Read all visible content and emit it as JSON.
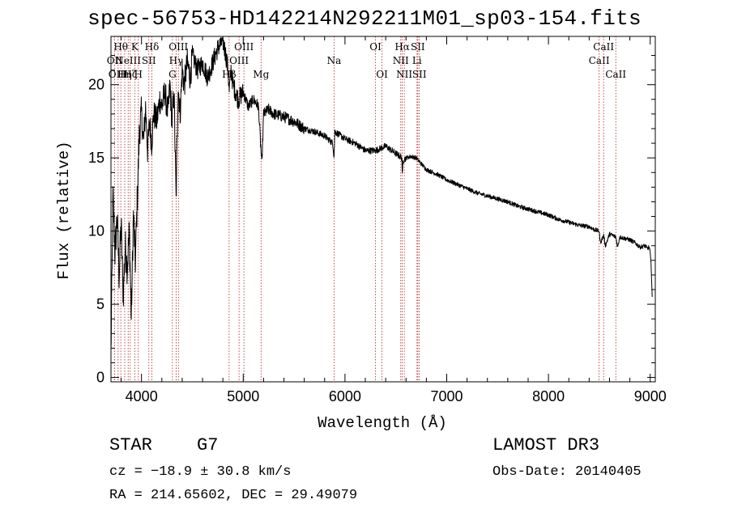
{
  "chart_data": {
    "type": "line",
    "title": "spec-56753-HD142214N292211M01_sp03-154.fits",
    "xlabel": "Wavelength (Å)",
    "ylabel": "Flux (relative)",
    "xlim": [
      3700,
      9050
    ],
    "ylim": [
      -0.3,
      23.3
    ],
    "xticks": [
      4000,
      5000,
      6000,
      7000,
      8000,
      9000
    ],
    "yticks": [
      0,
      5,
      10,
      15,
      20
    ],
    "grid": false,
    "series": [
      {
        "name": "flux",
        "x": [
          3700,
          3720,
          3740,
          3760,
          3780,
          3800,
          3820,
          3840,
          3860,
          3880,
          3900,
          3920,
          3940,
          3960,
          3980,
          4000,
          4020,
          4040,
          4060,
          4080,
          4100,
          4120,
          4150,
          4180,
          4200,
          4230,
          4260,
          4280,
          4300,
          4320,
          4340,
          4360,
          4380,
          4400,
          4420,
          4450,
          4480,
          4500,
          4550,
          4600,
          4650,
          4700,
          4750,
          4800,
          4830,
          4850,
          4862,
          4880,
          4900,
          4950,
          5000,
          5050,
          5100,
          5150,
          5170,
          5183,
          5200,
          5250,
          5300,
          5400,
          5500,
          5600,
          5700,
          5800,
          5880,
          5893,
          5900,
          6000,
          6100,
          6200,
          6300,
          6400,
          6500,
          6560,
          6563,
          6570,
          6600,
          6650,
          6700,
          6750,
          6800,
          6900,
          7000,
          7100,
          7200,
          7300,
          7400,
          7500,
          7600,
          7700,
          7800,
          7900,
          8000,
          8100,
          8200,
          8300,
          8400,
          8450,
          8498,
          8510,
          8542,
          8560,
          8600,
          8662,
          8680,
          8700,
          8800,
          8850,
          8900,
          8950,
          8970,
          8990,
          9000,
          9010,
          9020
        ],
        "values": [
          1.5,
          12.5,
          8.5,
          11.0,
          7.0,
          10.5,
          5.5,
          9.0,
          7.5,
          10.0,
          4.0,
          11.0,
          8.0,
          12.5,
          17.0,
          18.0,
          16.0,
          18.5,
          15.5,
          17.5,
          16.0,
          18.0,
          17.5,
          19.0,
          18.5,
          19.5,
          18.0,
          20.0,
          17.5,
          19.5,
          12.0,
          20.0,
          18.0,
          21.0,
          20.0,
          21.5,
          20.5,
          22.0,
          21.0,
          21.5,
          20.5,
          21.5,
          22.5,
          23.0,
          22.0,
          21.0,
          19.5,
          21.0,
          20.0,
          19.0,
          19.5,
          18.5,
          19.0,
          18.5,
          16.0,
          14.5,
          18.0,
          18.3,
          18.0,
          17.8,
          17.5,
          17.0,
          16.8,
          16.5,
          16.0,
          15.0,
          16.8,
          16.3,
          16.0,
          15.5,
          15.5,
          15.8,
          15.3,
          15.0,
          13.5,
          14.8,
          15.0,
          15.1,
          15.0,
          14.6,
          14.2,
          13.9,
          13.5,
          13.2,
          12.9,
          12.6,
          12.4,
          12.2,
          12.0,
          11.7,
          11.5,
          11.3,
          11.1,
          10.8,
          10.6,
          10.4,
          10.3,
          10.1,
          10.0,
          9.2,
          9.7,
          9.0,
          9.8,
          9.6,
          8.9,
          9.6,
          9.4,
          9.2,
          8.9,
          9.0,
          8.8,
          8.9,
          8.5,
          7.5,
          5.5
        ]
      }
    ],
    "lines": [
      {
        "wl": 3735,
        "labels": [
          "OII"
        ],
        "rows": [
          1
        ]
      },
      {
        "wl": 3770,
        "labels": [
          "OIII"
        ],
        "rows": [
          2
        ]
      },
      {
        "wl": 3797,
        "labels": [
          "Hθ"
        ],
        "rows": [
          0
        ]
      },
      {
        "wl": 3835,
        "labels": [
          "Hη"
        ],
        "rows": [
          2
        ]
      },
      {
        "wl": 3869,
        "labels": [
          "NeIII"
        ],
        "rows": [
          1
        ]
      },
      {
        "wl": 3889,
        "labels": [
          "Hζ"
        ],
        "rows": [
          2
        ]
      },
      {
        "wl": 3934,
        "labels": [
          "K"
        ],
        "rows": [
          0
        ]
      },
      {
        "wl": 3969,
        "labels": [
          "H"
        ],
        "rows": [
          2
        ]
      },
      {
        "wl": 4072,
        "labels": [
          "SII"
        ],
        "rows": [
          1
        ]
      },
      {
        "wl": 4102,
        "labels": [
          "Hδ"
        ],
        "rows": [
          0
        ]
      },
      {
        "wl": 4304,
        "labels": [
          "G"
        ],
        "rows": [
          2
        ]
      },
      {
        "wl": 4340,
        "labels": [
          "Hγ"
        ],
        "rows": [
          1
        ]
      },
      {
        "wl": 4363,
        "labels": [
          "OIII"
        ],
        "rows": [
          0
        ]
      },
      {
        "wl": 4861,
        "labels": [
          "Hβ"
        ],
        "rows": [
          2
        ]
      },
      {
        "wl": 4959,
        "labels": [
          "OIII"
        ],
        "rows": [
          1
        ]
      },
      {
        "wl": 5007,
        "labels": [
          "OIII"
        ],
        "rows": [
          0
        ]
      },
      {
        "wl": 5175,
        "labels": [
          "Mg"
        ],
        "rows": [
          2
        ]
      },
      {
        "wl": 5893,
        "labels": [
          "Na"
        ],
        "rows": [
          1
        ]
      },
      {
        "wl": 6300,
        "labels": [
          "OI"
        ],
        "rows": [
          0
        ]
      },
      {
        "wl": 6364,
        "labels": [
          "OI"
        ],
        "rows": [
          2
        ]
      },
      {
        "wl": 6548,
        "labels": [
          "NII"
        ],
        "rows": [
          1
        ]
      },
      {
        "wl": 6563,
        "labels": [
          "Hα"
        ],
        "rows": [
          0
        ]
      },
      {
        "wl": 6583,
        "labels": [
          "NII"
        ],
        "rows": [
          2
        ]
      },
      {
        "wl": 6708,
        "labels": [
          "Li"
        ],
        "rows": [
          1
        ]
      },
      {
        "wl": 6716,
        "labels": [
          "SII"
        ],
        "rows": [
          0
        ]
      },
      {
        "wl": 6731,
        "labels": [
          "SII"
        ],
        "rows": [
          2
        ]
      },
      {
        "wl": 8498,
        "labels": [
          "CaII"
        ],
        "rows": [
          1
        ]
      },
      {
        "wl": 8542,
        "labels": [
          "CaII"
        ],
        "rows": [
          0
        ]
      },
      {
        "wl": 8662,
        "labels": [
          "CaII"
        ],
        "rows": [
          2
        ]
      }
    ]
  },
  "info": {
    "object_class": "STAR",
    "subclass": "G7",
    "redshift": "cz = −18.9 ± 30.8 km/s",
    "coords": "RA = 214.65602, DEC =  29.49079",
    "survey": "LAMOST DR3",
    "obs_date": "Obs-Date: 20140405"
  }
}
